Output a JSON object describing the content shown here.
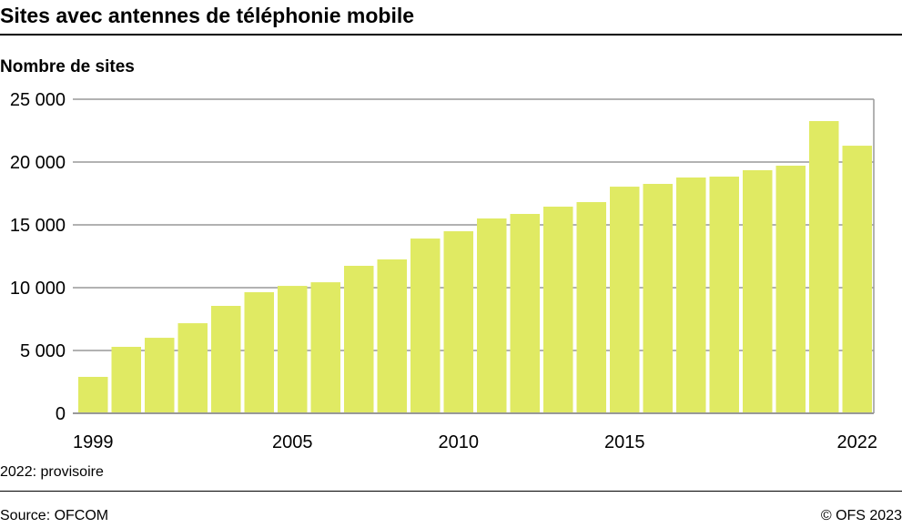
{
  "title": "Sites avec antennes de téléphonie mobile",
  "note": "2022: provisoire",
  "source": "Source: OFCOM",
  "copyright": "© OFS 2023",
  "chart_data": {
    "type": "bar",
    "title": "Sites avec antennes de téléphonie mobile",
    "ylabel": "Nombre de sites",
    "xlabel": "",
    "ylim": [
      0,
      25000
    ],
    "yticks": [
      0,
      5000,
      10000,
      15000,
      20000,
      25000
    ],
    "ytick_labels": [
      "0",
      "5 000",
      "10 000",
      "15 000",
      "20 000",
      "25 000"
    ],
    "xtick_labels": {
      "1999": "1999",
      "2005": "2005",
      "2010": "2010",
      "2015": "2015",
      "2022": "2022"
    },
    "grid": true,
    "bar_color": "#e0ea63",
    "categories": [
      "1999",
      "2000",
      "2001",
      "2002",
      "2003",
      "2004",
      "2005",
      "2006",
      "2007",
      "2008",
      "2009",
      "2010",
      "2011",
      "2012",
      "2013",
      "2014",
      "2015",
      "2016",
      "2017",
      "2018",
      "2019",
      "2020",
      "2021",
      "2022"
    ],
    "values": [
      2900,
      5290,
      6010,
      7170,
      8550,
      9640,
      10140,
      10430,
      11740,
      12250,
      13910,
      14490,
      15510,
      15870,
      16450,
      16810,
      18040,
      18260,
      18770,
      18840,
      19350,
      19710,
      23260,
      21300
    ]
  }
}
